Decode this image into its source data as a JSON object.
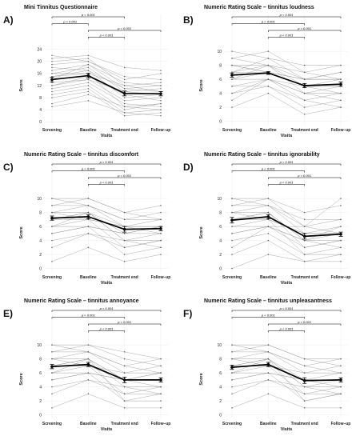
{
  "chart_data": [
    {
      "letter": "A)",
      "type": "line",
      "title": "Mini Tinnitus Questionnaire",
      "xlabel": "Visits",
      "ylabel": "Score",
      "categories": [
        "Screening",
        "Baseline",
        "Treatment end",
        "Follow–up"
      ],
      "yticks": [
        0,
        4,
        8,
        12,
        16,
        20,
        24
      ],
      "ylim": [
        -1,
        25
      ],
      "mean": [
        14.0,
        15.3,
        9.4,
        9.3
      ],
      "sem": [
        0.8,
        0.8,
        0.8,
        0.7
      ],
      "comparisons": [
        {
          "from": 0,
          "to": 2,
          "label": "p < 0.001"
        },
        {
          "from": 0,
          "to": 1,
          "label": "p < 0.001"
        },
        {
          "from": 1,
          "to": 3,
          "label": "p < 0.001"
        },
        {
          "from": 1,
          "to": 2,
          "label": "p < 0.001"
        }
      ],
      "individuals": [
        [
          22,
          20,
          15,
          14
        ],
        [
          20,
          21,
          12,
          10
        ],
        [
          18,
          17,
          8,
          9
        ],
        [
          16,
          18,
          10,
          11
        ],
        [
          15,
          16,
          5,
          6
        ],
        [
          14,
          19,
          13,
          12
        ],
        [
          13,
          14,
          7,
          8
        ],
        [
          12,
          15,
          9,
          7
        ],
        [
          11,
          13,
          6,
          5
        ],
        [
          10,
          12,
          4,
          6
        ],
        [
          9,
          11,
          3,
          4
        ],
        [
          17,
          19,
          11,
          10
        ],
        [
          19,
          20,
          14,
          16
        ],
        [
          8,
          10,
          2,
          3
        ],
        [
          6,
          9,
          5,
          4
        ],
        [
          5,
          7,
          3,
          2
        ],
        [
          16,
          16,
          12,
          13
        ],
        [
          21,
          22,
          18,
          17
        ],
        [
          12,
          14,
          10,
          9
        ],
        [
          15,
          17,
          11,
          12
        ]
      ]
    },
    {
      "letter": "B)",
      "type": "line",
      "title": "Numeric Rating Scale – tinnitus loudness",
      "xlabel": "Visits",
      "ylabel": "Score",
      "categories": [
        "Screening",
        "Baseline",
        "Treatment end",
        "Follow–up"
      ],
      "yticks": [
        0,
        2,
        4,
        6,
        8,
        10
      ],
      "ylim": [
        -0.5,
        10.7
      ],
      "mean": [
        6.6,
        6.9,
        5.1,
        5.3
      ],
      "sem": [
        0.3,
        0.2,
        0.3,
        0.3
      ],
      "comparisons": [
        {
          "from": 0,
          "to": 3,
          "label": "p < 0.001"
        },
        {
          "from": 0,
          "to": 2,
          "label": "p < 0.001"
        },
        {
          "from": 1,
          "to": 3,
          "label": "p < 0.001"
        },
        {
          "from": 1,
          "to": 2,
          "label": "p < 0.001"
        }
      ],
      "individuals": [
        [
          10,
          9,
          8,
          8
        ],
        [
          9,
          8,
          7,
          6
        ],
        [
          8,
          8,
          6,
          7
        ],
        [
          8,
          7,
          5,
          5
        ],
        [
          7,
          7,
          6,
          6
        ],
        [
          7,
          8,
          4,
          4
        ],
        [
          6,
          7,
          5,
          6
        ],
        [
          6,
          6,
          3,
          4
        ],
        [
          5,
          6,
          4,
          3
        ],
        [
          5,
          5,
          2,
          3
        ],
        [
          4,
          5,
          3,
          2
        ],
        [
          3,
          6,
          4,
          5
        ],
        [
          2,
          4,
          1,
          2
        ],
        [
          7,
          9,
          6,
          7
        ],
        [
          6,
          8,
          5,
          5
        ],
        [
          9,
          10,
          7,
          8
        ],
        [
          4,
          6,
          5,
          4
        ],
        [
          8,
          7,
          6,
          6
        ]
      ]
    },
    {
      "letter": "C)",
      "type": "line",
      "title": "Numeric Rating Scale – tinnitus discomfort",
      "xlabel": "Visits",
      "ylabel": "Score",
      "categories": [
        "Screening",
        "Baseline",
        "Treatment end",
        "Follow–up"
      ],
      "yticks": [
        0,
        2,
        4,
        6,
        8,
        10
      ],
      "ylim": [
        -0.5,
        10.7
      ],
      "mean": [
        7.2,
        7.4,
        5.6,
        5.7
      ],
      "sem": [
        0.3,
        0.3,
        0.4,
        0.3
      ],
      "comparisons": [
        {
          "from": 0,
          "to": 3,
          "label": "p < 0.001"
        },
        {
          "from": 0,
          "to": 2,
          "label": "p < 0.001"
        },
        {
          "from": 1,
          "to": 3,
          "label": "p < 0.001"
        },
        {
          "from": 1,
          "to": 2,
          "label": "p < 0.001"
        }
      ],
      "individuals": [
        [
          10,
          10,
          8,
          9
        ],
        [
          10,
          9,
          7,
          7
        ],
        [
          9,
          9,
          6,
          6
        ],
        [
          8,
          8,
          5,
          6
        ],
        [
          8,
          9,
          7,
          8
        ],
        [
          7,
          8,
          4,
          5
        ],
        [
          7,
          7,
          6,
          5
        ],
        [
          6,
          7,
          3,
          4
        ],
        [
          6,
          6,
          5,
          6
        ],
        [
          5,
          6,
          2,
          3
        ],
        [
          4,
          5,
          3,
          4
        ],
        [
          3,
          5,
          4,
          3
        ],
        [
          1,
          3,
          1,
          2
        ],
        [
          9,
          10,
          8,
          7
        ],
        [
          8,
          7,
          6,
          6
        ],
        [
          5,
          6,
          5,
          5
        ],
        [
          7,
          8,
          6,
          7
        ],
        [
          6,
          8,
          4,
          4
        ]
      ]
    },
    {
      "letter": "D)",
      "type": "line",
      "title": "Numeric Rating Scale – tinnitus ignorability",
      "xlabel": "Visits",
      "ylabel": "Score",
      "categories": [
        "Screening",
        "Baseline",
        "Treatment end",
        "Follow–up"
      ],
      "yticks": [
        0,
        2,
        4,
        6,
        8,
        10
      ],
      "ylim": [
        -0.5,
        10.7
      ],
      "mean": [
        6.9,
        7.4,
        4.6,
        4.9
      ],
      "sem": [
        0.4,
        0.3,
        0.4,
        0.3
      ],
      "comparisons": [
        {
          "from": 0,
          "to": 3,
          "label": "p < 0.001"
        },
        {
          "from": 0,
          "to": 2,
          "label": "p < 0.001"
        },
        {
          "from": 1,
          "to": 3,
          "label": "p < 0.001"
        },
        {
          "from": 1,
          "to": 2,
          "label": "p < 0.001"
        }
      ],
      "individuals": [
        [
          10,
          10,
          8,
          9
        ],
        [
          10,
          9,
          6,
          7
        ],
        [
          9,
          9,
          5,
          6
        ],
        [
          8,
          8,
          4,
          5
        ],
        [
          8,
          9,
          7,
          7
        ],
        [
          7,
          8,
          3,
          4
        ],
        [
          7,
          7,
          5,
          5
        ],
        [
          6,
          7,
          2,
          3
        ],
        [
          6,
          6,
          4,
          6
        ],
        [
          5,
          6,
          3,
          4
        ],
        [
          4,
          5,
          2,
          2
        ],
        [
          3,
          6,
          4,
          3
        ],
        [
          2,
          4,
          1,
          1
        ],
        [
          9,
          10,
          6,
          10
        ],
        [
          8,
          7,
          5,
          5
        ],
        [
          5,
          6,
          6,
          5
        ],
        [
          7,
          8,
          4,
          4
        ],
        [
          0,
          2,
          1,
          2
        ]
      ]
    },
    {
      "letter": "E)",
      "type": "line",
      "title": "Numeric Rating Scale – tinnitus annoyance",
      "xlabel": "Visits",
      "ylabel": "Score",
      "categories": [
        "Screening",
        "Baseline",
        "Treatment end",
        "Follow–up"
      ],
      "yticks": [
        0,
        2,
        4,
        6,
        8,
        10
      ],
      "ylim": [
        -0.5,
        10.7
      ],
      "mean": [
        6.9,
        7.2,
        5.0,
        5.0
      ],
      "sem": [
        0.3,
        0.3,
        0.4,
        0.3
      ],
      "comparisons": [
        {
          "from": 0,
          "to": 3,
          "label": "p < 0.001"
        },
        {
          "from": 0,
          "to": 2,
          "label": "p < 0.001"
        },
        {
          "from": 1,
          "to": 3,
          "label": "p < 0.001"
        },
        {
          "from": 1,
          "to": 2,
          "label": "p < 0.001"
        }
      ],
      "individuals": [
        [
          10,
          10,
          9,
          8
        ],
        [
          10,
          9,
          7,
          6
        ],
        [
          9,
          9,
          6,
          7
        ],
        [
          8,
          8,
          5,
          5
        ],
        [
          8,
          9,
          7,
          8
        ],
        [
          7,
          8,
          4,
          4
        ],
        [
          7,
          7,
          5,
          6
        ],
        [
          6,
          7,
          3,
          3
        ],
        [
          6,
          6,
          5,
          5
        ],
        [
          5,
          6,
          2,
          3
        ],
        [
          4,
          5,
          3,
          4
        ],
        [
          3,
          5,
          4,
          3
        ],
        [
          1,
          3,
          1,
          1
        ],
        [
          9,
          10,
          8,
          7
        ],
        [
          8,
          7,
          6,
          6
        ],
        [
          5,
          6,
          5,
          4
        ],
        [
          7,
          8,
          5,
          6
        ],
        [
          6,
          8,
          2,
          2
        ]
      ]
    },
    {
      "letter": "F)",
      "type": "line",
      "title": "Numeric Rating Scale – tinnitus unpleasantness",
      "xlabel": "Visits",
      "ylabel": "Score",
      "categories": [
        "Screening",
        "Baseline",
        "Treatment end",
        "Follow–up"
      ],
      "yticks": [
        0,
        2,
        4,
        6,
        8,
        10
      ],
      "ylim": [
        -0.5,
        10.7
      ],
      "mean": [
        6.8,
        7.2,
        4.9,
        5.0
      ],
      "sem": [
        0.3,
        0.3,
        0.4,
        0.3
      ],
      "comparisons": [
        {
          "from": 0,
          "to": 3,
          "label": "p < 0.001"
        },
        {
          "from": 0,
          "to": 2,
          "label": "p < 0.001"
        },
        {
          "from": 1,
          "to": 3,
          "label": "p < 0.001"
        },
        {
          "from": 1,
          "to": 2,
          "label": "p < 0.001"
        }
      ],
      "individuals": [
        [
          10,
          10,
          8,
          8
        ],
        [
          10,
          9,
          7,
          6
        ],
        [
          9,
          9,
          6,
          7
        ],
        [
          8,
          8,
          5,
          5
        ],
        [
          8,
          9,
          7,
          8
        ],
        [
          7,
          8,
          4,
          4
        ],
        [
          7,
          7,
          5,
          6
        ],
        [
          6,
          7,
          3,
          3
        ],
        [
          6,
          6,
          5,
          5
        ],
        [
          5,
          6,
          2,
          3
        ],
        [
          4,
          5,
          3,
          4
        ],
        [
          3,
          5,
          4,
          3
        ],
        [
          1,
          3,
          1,
          1
        ],
        [
          9,
          10,
          8,
          7
        ],
        [
          8,
          7,
          6,
          6
        ],
        [
          5,
          6,
          5,
          4
        ],
        [
          7,
          8,
          4,
          5
        ],
        [
          6,
          8,
          2,
          3
        ]
      ]
    }
  ]
}
